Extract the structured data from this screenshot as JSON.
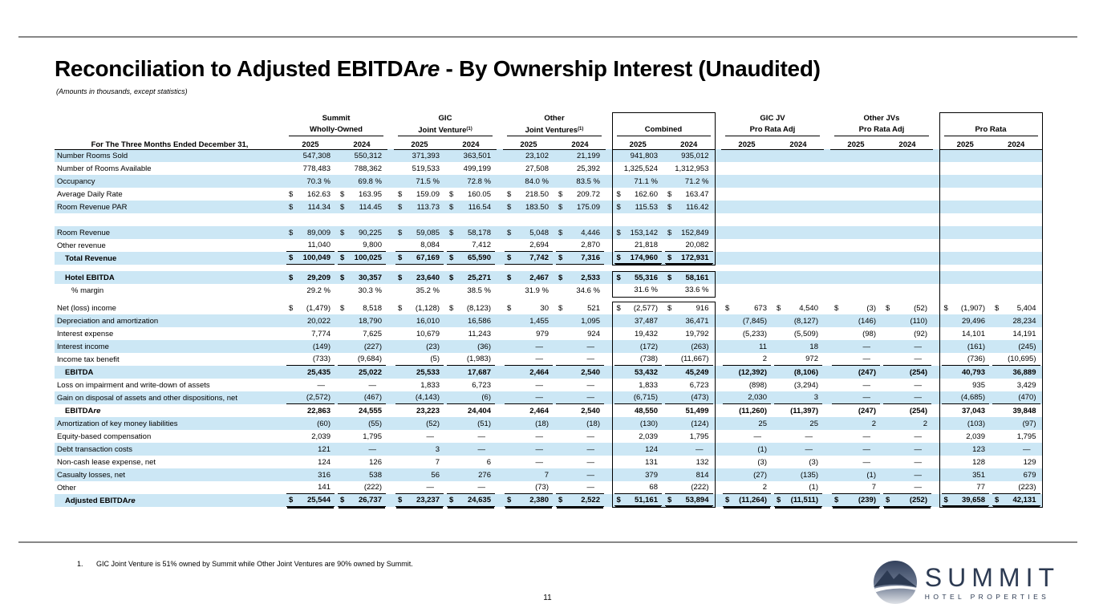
{
  "page": {
    "title": {
      "pre": "Reconciliation to Adjusted EBITDA",
      "italic": "re",
      "post": " - By Ownership Interest (Unaudited)"
    },
    "subtitle": "(Amounts in thousands, except statistics)",
    "footnote_num": "1.",
    "footnote_text": "GIC Joint Venture is 51% owned by Summit while Other Joint Ventures are 90% owned by Summit.",
    "page_number": "11"
  },
  "logo": {
    "name": "SUMMIT",
    "tagline": "HOTEL PROPERTIES"
  },
  "colors": {
    "stripe": "#cce7f5",
    "navy": "#2c3a52",
    "rule": "#878787"
  },
  "table": {
    "row_header": "For The Three Months Ended December 31,",
    "years": [
      "2025",
      "2024"
    ],
    "groups": [
      {
        "line1": "Summit",
        "line2": "Wholly-Owned",
        "sup": "",
        "box": false
      },
      {
        "line1": "GIC",
        "line2": "Joint Venture",
        "sup": "(1)",
        "box": false
      },
      {
        "line1": "Other",
        "line2": "Joint Ventures",
        "sup": "(1)",
        "box": false
      },
      {
        "line1": "",
        "line2": "Combined",
        "sup": "",
        "box": true
      },
      {
        "line1": "GIC JV",
        "line2": "Pro Rata Adj",
        "sup": "",
        "box": false
      },
      {
        "line1": "Other JVs",
        "line2": "Pro Rata Adj",
        "sup": "",
        "box": false
      },
      {
        "line1": "",
        "line2": "Pro Rata",
        "sup": "",
        "box": true
      }
    ],
    "rows": [
      {
        "label": "Number Rooms Sold",
        "s": 1,
        "cells": [
          "547,308",
          "550,312",
          "371,393",
          "363,501",
          "23,102",
          "21,199",
          "941,803",
          "935,012",
          "",
          "",
          "",
          "",
          "",
          ""
        ]
      },
      {
        "label": "Number of Rooms Available",
        "s": 0,
        "cells": [
          "778,483",
          "788,362",
          "519,533",
          "499,199",
          "27,508",
          "25,392",
          "1,325,524",
          "1,312,953",
          "",
          "",
          "",
          "",
          "",
          ""
        ]
      },
      {
        "label": "Occupancy",
        "s": 1,
        "cells": [
          "70.3 %",
          "69.8 %",
          "71.5 %",
          "72.8 %",
          "84.0 %",
          "83.5 %",
          "71.1 %",
          "71.2 %",
          "",
          "",
          "",
          "",
          "",
          ""
        ]
      },
      {
        "label": "Average Daily Rate",
        "s": 0,
        "cells": [
          "$ 162.63",
          "$ 163.95",
          "$ 159.09",
          "$ 160.05",
          "$ 218.50",
          "$ 209.72",
          "$ 162.60",
          "$ 163.47",
          "",
          "",
          "",
          "",
          "",
          ""
        ]
      },
      {
        "label": "Room Revenue PAR",
        "s": 1,
        "cells": [
          "$ 114.34",
          "$ 114.45",
          "$ 113.73",
          "$ 116.54",
          "$ 183.50",
          "$ 175.09",
          "$ 115.53",
          "$ 116.42",
          "",
          "",
          "",
          "",
          "",
          ""
        ]
      },
      {
        "blank": 1,
        "h": 16,
        "cb": "m",
        "pb": "m"
      },
      {
        "label": "Room Revenue",
        "s": 1,
        "cells": [
          "$ 89,009",
          "$ 90,225",
          "$ 59,085",
          "$ 58,178",
          "$ 5,048",
          "$ 4,446",
          "$ 153,142",
          "$ 152,849",
          "",
          "",
          "",
          "",
          "",
          ""
        ]
      },
      {
        "label": "Other revenue",
        "s": 0,
        "ru": "s8",
        "cells": [
          "11,040",
          "9,800",
          "8,084",
          "7,412",
          "2,694",
          "2,870",
          "21,818",
          "20,082",
          "",
          "",
          "",
          "",
          "",
          ""
        ]
      },
      {
        "label": "Total Revenue",
        "s": 1,
        "b": 1,
        "i": 1,
        "ru": "d8",
        "cb": "b",
        "cells": [
          "$ 100,049",
          "$ 100,025",
          "$ 67,169",
          "$ 65,590",
          "$ 7,742",
          "$ 7,316",
          "$ 174,960",
          "$ 172,931",
          "",
          "",
          "",
          "",
          "",
          ""
        ]
      },
      {
        "blank": 1,
        "h": 8,
        "cb": "n",
        "pb": "m"
      },
      {
        "label": "Hotel EBITDA",
        "s": 1,
        "b": 1,
        "i": 1,
        "cb": "t",
        "cells": [
          "$ 29,209",
          "$ 30,357",
          "$ 23,640",
          "$ 25,271",
          "$ 2,467",
          "$ 2,533",
          "$ 55,316",
          "$ 58,161",
          "",
          "",
          "",
          "",
          "",
          ""
        ]
      },
      {
        "label": "% margin",
        "s": 0,
        "i": 2,
        "cb": "b",
        "cells": [
          "29.2 %",
          "30.3 %",
          "35.2 %",
          "38.5 %",
          "31.9 %",
          "34.6 %",
          "31.6 %",
          "33.6 %",
          "",
          "",
          "",
          "",
          "",
          ""
        ]
      },
      {
        "blank": 1,
        "h": 6,
        "cb": "n",
        "pb": "m"
      },
      {
        "label": "Net (loss) income",
        "s": 0,
        "cb": "t",
        "cells": [
          "$ (1,479)",
          "$ 8,518",
          "$ (1,128)",
          "$ (8,123)",
          "$ 30",
          "$ 521",
          "$ (2,577)",
          "$ 916",
          "$ 673",
          "$ 4,540",
          "$ (3)",
          "$ (52)",
          "$ (1,907)",
          "$ 5,404"
        ]
      },
      {
        "label": "Depreciation and amortization",
        "s": 1,
        "cells": [
          "20,022",
          "18,790",
          "16,010",
          "16,586",
          "1,455",
          "1,095",
          "37,487",
          "36,471",
          "(7,845)",
          "(8,127)",
          "(146)",
          "(110)",
          "29,496",
          "28,234"
        ]
      },
      {
        "label": "Interest expense",
        "s": 0,
        "cells": [
          "7,774",
          "7,625",
          "10,679",
          "11,243",
          "979",
          "924",
          "19,432",
          "19,792",
          "(5,233)",
          "(5,509)",
          "(98)",
          "(92)",
          "14,101",
          "14,191"
        ]
      },
      {
        "label": "Interest income",
        "s": 1,
        "cells": [
          "(149)",
          "(227)",
          "(23)",
          "(36)",
          "—",
          "—",
          "(172)",
          "(263)",
          "11",
          "18",
          "—",
          "—",
          "(161)",
          "(245)"
        ]
      },
      {
        "label": "Income tax benefit",
        "s": 0,
        "ru": "sA",
        "cells": [
          "(733)",
          "(9,684)",
          "(5)",
          "(1,983)",
          "—",
          "—",
          "(738)",
          "(11,667)",
          "2",
          "972",
          "—",
          "—",
          "(736)",
          "(10,695)"
        ]
      },
      {
        "label": "EBITDA",
        "s": 1,
        "b": 1,
        "i": 1,
        "cells": [
          "25,435",
          "25,022",
          "25,533",
          "17,687",
          "2,464",
          "2,540",
          "53,432",
          "45,249",
          "(12,392)",
          "(8,106)",
          "(247)",
          "(254)",
          "40,793",
          "36,889"
        ]
      },
      {
        "label": "Loss on impairment and write-down of assets",
        "s": 0,
        "cells": [
          "—",
          "—",
          "1,833",
          "6,723",
          "—",
          "—",
          "1,833",
          "6,723",
          "(898)",
          "(3,294)",
          "—",
          "—",
          "935",
          "3,429"
        ]
      },
      {
        "label": "Gain on disposal of assets and other dispositions, net",
        "s": 1,
        "ru": "sA",
        "cells": [
          "(2,572)",
          "(467)",
          "(4,143)",
          "(6)",
          "—",
          "—",
          "(6,715)",
          "(473)",
          "2,030",
          "3",
          "—",
          "—",
          "(4,685)",
          "(470)"
        ]
      },
      {
        "label": "EBITDA",
        "it": "re",
        "s": 0,
        "b": 1,
        "i": 1,
        "cells": [
          "22,863",
          "24,555",
          "23,223",
          "24,404",
          "2,464",
          "2,540",
          "48,550",
          "51,499",
          "(11,260)",
          "(11,397)",
          "(247)",
          "(254)",
          "37,043",
          "39,848"
        ]
      },
      {
        "label": "Amortization of key money liabilities",
        "s": 1,
        "cells": [
          "(60)",
          "(55)",
          "(52)",
          "(51)",
          "(18)",
          "(18)",
          "(130)",
          "(124)",
          "25",
          "25",
          "2",
          "2",
          "(103)",
          "(97)"
        ]
      },
      {
        "label": "Equity-based compensation",
        "s": 0,
        "cells": [
          "2,039",
          "1,795",
          "—",
          "—",
          "—",
          "—",
          "2,039",
          "1,795",
          "—",
          "—",
          "—",
          "—",
          "2,039",
          "1,795"
        ]
      },
      {
        "label": "Debt transaction costs",
        "s": 1,
        "cells": [
          "121",
          "—",
          "3",
          "—",
          "—",
          "—",
          "124",
          "—",
          "(1)",
          "—",
          "—",
          "—",
          "123",
          "—"
        ]
      },
      {
        "label": "Non-cash lease expense, net",
        "s": 0,
        "cells": [
          "124",
          "126",
          "7",
          "6",
          "—",
          "—",
          "131",
          "132",
          "(3)",
          "(3)",
          "—",
          "—",
          "128",
          "129"
        ]
      },
      {
        "label": "Casualty losses, net",
        "s": 1,
        "cells": [
          "316",
          "538",
          "56",
          "276",
          "7",
          "—",
          "379",
          "814",
          "(27)",
          "(135)",
          "(1)",
          "—",
          "351",
          "679"
        ]
      },
      {
        "label": "Other",
        "s": 0,
        "ru": "sA",
        "cells": [
          "141",
          "(222)",
          "—",
          "—",
          "(73)",
          "—",
          "68",
          "(222)",
          "2",
          "(1)",
          "7",
          "—",
          "77",
          "(223)"
        ]
      },
      {
        "label": "Adjusted EBITDA",
        "it": "re",
        "s": 1,
        "b": 1,
        "i": 1,
        "ru": "dA",
        "cb": "b",
        "pb": "b",
        "cells": [
          "$ 25,544",
          "$ 26,737",
          "$ 23,237",
          "$ 24,635",
          "$ 2,380",
          "$ 2,522",
          "$ 51,161",
          "$ 53,894",
          "$ (11,264)",
          "$ (11,511)",
          "$ (239)",
          "$ (252)",
          "$ 39,658",
          "$ 42,131"
        ]
      }
    ]
  }
}
